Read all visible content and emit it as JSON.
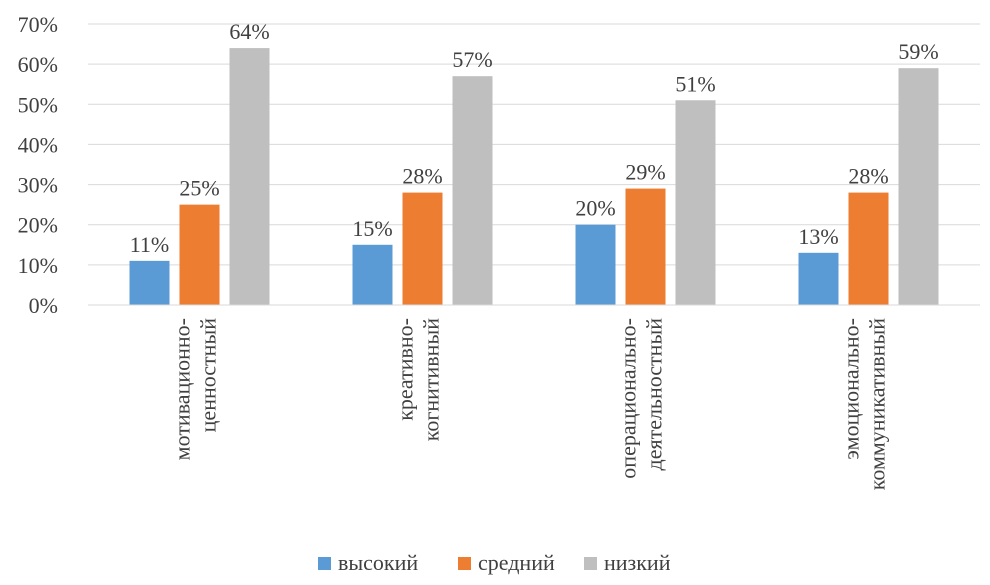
{
  "chart_data": {
    "type": "bar",
    "title": "",
    "xlabel": "",
    "ylabel": "",
    "ylim": [
      0,
      70
    ],
    "y_ticks": [
      "0%",
      "10%",
      "20%",
      "30%",
      "40%",
      "50%",
      "60%",
      "70%"
    ],
    "y_tick_values": [
      0,
      10,
      20,
      30,
      40,
      50,
      60,
      70
    ],
    "grid": true,
    "legend_position": "bottom",
    "categories": [
      [
        "мотивационно-",
        "ценностный"
      ],
      [
        "креативно-",
        "когнитивный"
      ],
      [
        "операционально-",
        "деятельностный"
      ],
      [
        "эмоционально-",
        "коммуникативный"
      ]
    ],
    "series": [
      {
        "name": "высокий",
        "color": "#5B9BD5",
        "values": [
          11,
          15,
          20,
          13
        ],
        "labels": [
          "11%",
          "15%",
          "20%",
          "13%"
        ]
      },
      {
        "name": "средний",
        "color": "#ED7D31",
        "values": [
          25,
          28,
          29,
          28
        ],
        "labels": [
          "25%",
          "28%",
          "29%",
          "28%"
        ]
      },
      {
        "name": "низкий",
        "color": "#BFBFBF",
        "values": [
          64,
          57,
          51,
          59
        ],
        "labels": [
          "64%",
          "57%",
          "51%",
          "59%"
        ]
      }
    ]
  }
}
